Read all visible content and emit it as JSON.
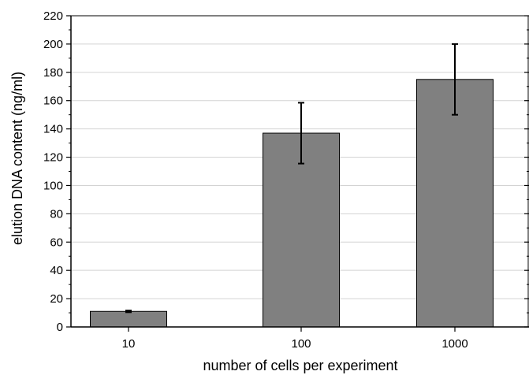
{
  "chart_data": {
    "type": "bar",
    "categories": [
      "10",
      "100",
      "1000"
    ],
    "values": [
      11,
      137,
      175
    ],
    "errors": [
      0.6,
      21.5,
      25
    ],
    "xlabel": "number of cells per experiment",
    "ylabel": "elution DNA content (ng/ml)",
    "ylim": [
      0,
      220
    ],
    "yticks": [
      "0",
      "20",
      "40",
      "60",
      "80",
      "100",
      "120",
      "140",
      "160",
      "180",
      "200",
      "220"
    ],
    "grid": "horizontal",
    "bar_color": "#808080",
    "gridline_color": "#d3d3d3"
  }
}
